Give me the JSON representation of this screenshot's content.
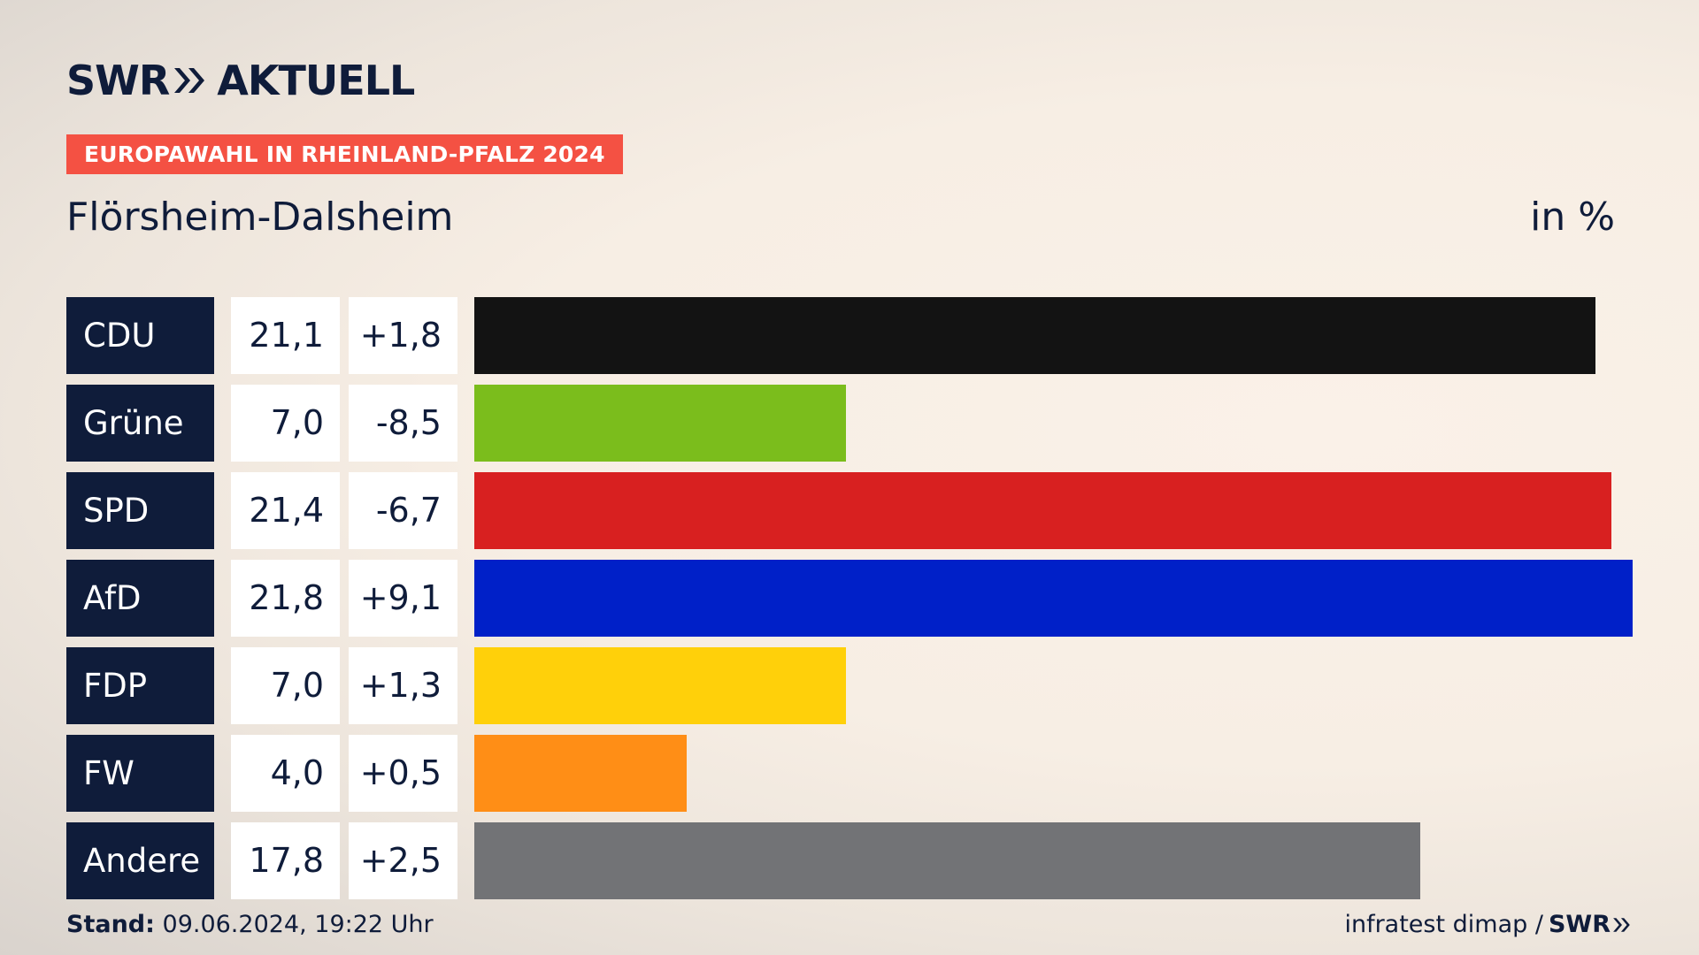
{
  "header": {
    "logo_left": "SWR",
    "logo_right": "AKTUELL",
    "badge": "EUROPAWAHL IN RHEINLAND-PFALZ 2024",
    "subtitle": "Flörsheim-Dalsheim",
    "unit": "in %"
  },
  "footer": {
    "stand_label": "Stand:",
    "stand_value": "09.06.2024, 19:22 Uhr",
    "source": "infratest dimap /",
    "source_logo": "SWR"
  },
  "colors": {
    "brand_navy": "#0f1c3a",
    "badge_red": "#f45143"
  },
  "chart_data": {
    "type": "bar",
    "orientation": "horizontal",
    "categories": [
      "CDU",
      "Grüne",
      "SPD",
      "AfD",
      "FDP",
      "FW",
      "Andere"
    ],
    "values": [
      21.1,
      7.0,
      21.4,
      21.8,
      7.0,
      4.0,
      17.8
    ],
    "value_labels": [
      "21,1",
      "7,0",
      "21,4",
      "21,8",
      "7,0",
      "4,0",
      "17,8"
    ],
    "change_labels": [
      "+1,8",
      "-8,5",
      "-6,7",
      "+9,1",
      "+1,3",
      "+0,5",
      "+2,5"
    ],
    "changes": [
      1.8,
      -8.5,
      -6.7,
      9.1,
      1.3,
      0.5,
      2.5
    ],
    "bar_colors": [
      "#131313",
      "#7bbd1c",
      "#d82020",
      "#0020c8",
      "#ffd00a",
      "#ff8e16",
      "#727376"
    ],
    "xlim": [
      0,
      21.8
    ],
    "grid": false
  }
}
